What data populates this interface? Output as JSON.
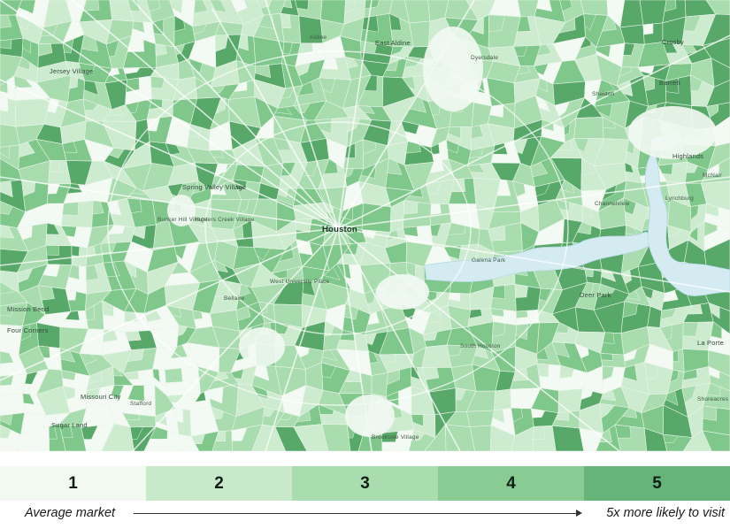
{
  "map": {
    "labels": [
      {
        "text": "Jersey Village",
        "cls": "city"
      },
      {
        "text": "Aldine",
        "cls": ""
      },
      {
        "text": "East Aldine",
        "cls": "city"
      },
      {
        "text": "Dyersdale",
        "cls": ""
      },
      {
        "text": "Sheldon",
        "cls": ""
      },
      {
        "text": "Barrett",
        "cls": "city"
      },
      {
        "text": "Crosby",
        "cls": "city"
      },
      {
        "text": "Highlands",
        "cls": "city"
      },
      {
        "text": "McNair",
        "cls": ""
      },
      {
        "text": "Spring Valley Village",
        "cls": "city"
      },
      {
        "text": "Bunker Hill Village",
        "cls": ""
      },
      {
        "text": "Hunters Creek Village",
        "cls": ""
      },
      {
        "text": "Houston",
        "cls": "major"
      },
      {
        "text": "Lynchburg",
        "cls": ""
      },
      {
        "text": "Channelview",
        "cls": ""
      },
      {
        "text": "Galena Park",
        "cls": ""
      },
      {
        "text": "West University Place",
        "cls": ""
      },
      {
        "text": "Bellaire",
        "cls": ""
      },
      {
        "text": "Mission Bend",
        "cls": "city"
      },
      {
        "text": "Four Corners",
        "cls": "city"
      },
      {
        "text": "Deer Park",
        "cls": "city"
      },
      {
        "text": "South Houston",
        "cls": ""
      },
      {
        "text": "La Porte",
        "cls": "city"
      },
      {
        "text": "Shoreacres",
        "cls": ""
      },
      {
        "text": "Missouri City",
        "cls": "city"
      },
      {
        "text": "Stafford",
        "cls": ""
      },
      {
        "text": "Sugar Land",
        "cls": "city"
      },
      {
        "text": "Brookside Village",
        "cls": ""
      }
    ],
    "colors": {
      "level1": "#f3faf3",
      "level2": "#cdebcf",
      "level3": "#a9dcae",
      "level4": "#7fc78a",
      "level5": "#58a86a",
      "water": "#d4ebf2",
      "road": "#ffffff"
    }
  },
  "legend": {
    "levels": [
      {
        "label": "1",
        "color": "#f1f9f1"
      },
      {
        "label": "2",
        "color": "#c8eacb"
      },
      {
        "label": "3",
        "color": "#a9dcae"
      },
      {
        "label": "4",
        "color": "#88cc93"
      },
      {
        "label": "5",
        "color": "#66b47a"
      }
    ],
    "left_label": "Average market",
    "right_label": "5x more likely to visit"
  }
}
